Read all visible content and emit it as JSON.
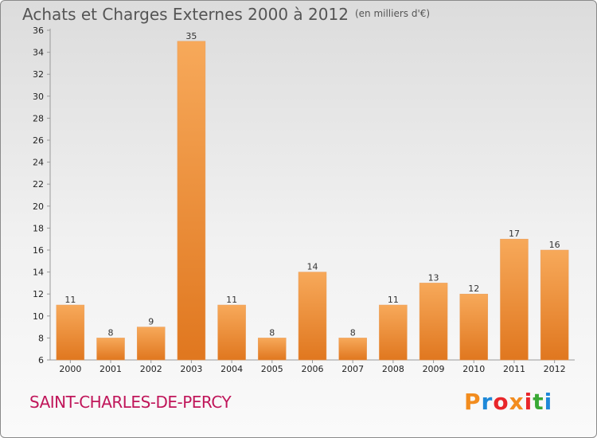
{
  "title": "Achats et Charges Externes 2000 à 2012",
  "subtitle": "(en milliers d'€)",
  "commune": "SAINT-CHARLES-DE-PERCY",
  "logo": {
    "text": "Proxiti",
    "colors": [
      "#f28c1e",
      "#1e88d8",
      "#e8262a",
      "#f28c1e",
      "#e8262a",
      "#3aa935",
      "#1e88d8"
    ]
  },
  "colors": {
    "bar_light": "#f7a95a",
    "bar_dark": "#e0771f",
    "title": "#555555",
    "commune": "#c0165a"
  },
  "chart_data": {
    "type": "bar",
    "title": "Achats et Charges Externes 2000 à 2012",
    "xlabel": "",
    "ylabel": "",
    "categories": [
      "2000",
      "2001",
      "2002",
      "2003",
      "2004",
      "2005",
      "2006",
      "2007",
      "2008",
      "2009",
      "2010",
      "2011",
      "2012"
    ],
    "values": [
      11,
      8,
      9,
      35,
      11,
      8,
      14,
      8,
      11,
      13,
      12,
      17,
      16
    ],
    "ylim": [
      6,
      36
    ],
    "yticks": [
      6,
      8,
      10,
      12,
      14,
      16,
      18,
      20,
      22,
      24,
      26,
      28,
      30,
      32,
      34,
      36
    ],
    "grid": false,
    "data_labels": true
  }
}
